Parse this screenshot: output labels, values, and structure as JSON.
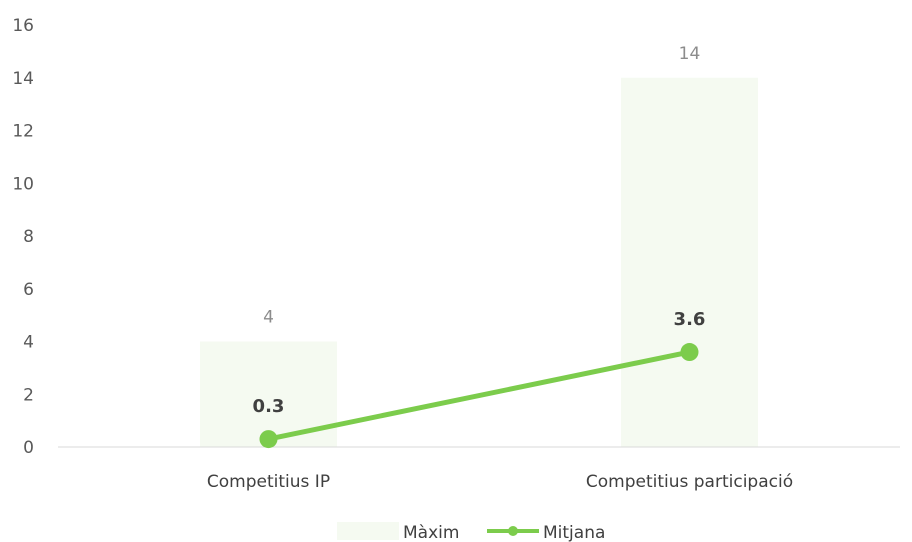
{
  "chart_data": {
    "type": "bar",
    "categories": [
      "Competitius IP",
      "Competitius participació"
    ],
    "series": [
      {
        "name": "Màxim",
        "type": "bar",
        "values": [
          4,
          14
        ],
        "color": "#f5faf1",
        "data_labels": [
          "4",
          "14"
        ]
      },
      {
        "name": "Mitjana",
        "type": "line",
        "values": [
          0.3,
          3.6
        ],
        "color": "#7ccc4c",
        "data_labels": [
          "0.3",
          "3.6"
        ]
      }
    ],
    "ylim": [
      0,
      16
    ],
    "yticks": [
      0,
      2,
      4,
      6,
      8,
      10,
      12,
      14,
      16
    ],
    "ytick_labels": [
      "0",
      "2",
      "4",
      "6",
      "8",
      "10",
      "12",
      "14",
      "16"
    ],
    "grid": false,
    "legend": "bottom-center"
  }
}
